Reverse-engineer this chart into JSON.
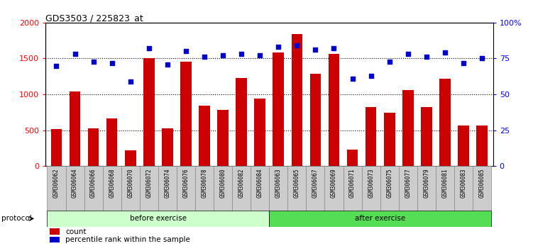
{
  "title": "GDS3503 / 225823_at",
  "categories": [
    "GSM306062",
    "GSM306064",
    "GSM306066",
    "GSM306068",
    "GSM306070",
    "GSM306072",
    "GSM306074",
    "GSM306076",
    "GSM306078",
    "GSM306080",
    "GSM306082",
    "GSM306084",
    "GSM306063",
    "GSM306065",
    "GSM306067",
    "GSM306069",
    "GSM306071",
    "GSM306073",
    "GSM306075",
    "GSM306077",
    "GSM306079",
    "GSM306081",
    "GSM306083",
    "GSM306085"
  ],
  "counts": [
    520,
    1040,
    530,
    670,
    220,
    1500,
    530,
    1460,
    840,
    780,
    1230,
    940,
    1580,
    1840,
    1290,
    1560,
    230,
    820,
    740,
    1060,
    820,
    1220,
    570,
    570
  ],
  "percentiles": [
    70,
    78,
    73,
    72,
    59,
    82,
    71,
    80,
    76,
    77,
    78,
    77,
    83,
    84,
    81,
    82,
    61,
    63,
    73,
    78,
    76,
    79,
    72,
    75
  ],
  "before_count": 12,
  "after_count": 12,
  "bar_color": "#cc0000",
  "dot_color": "#0000cc",
  "ylim_left": [
    0,
    2000
  ],
  "ylim_right": [
    0,
    100
  ],
  "yticks_left": [
    0,
    500,
    1000,
    1500,
    2000
  ],
  "yticks_right": [
    0,
    25,
    50,
    75,
    100
  ],
  "before_label": "before exercise",
  "after_label": "after exercise",
  "protocol_label": "protocol",
  "count_label": "count",
  "percentile_label": "percentile rank within the sample",
  "before_color": "#ccffcc",
  "after_color": "#55dd55",
  "tick_bg": "#cccccc",
  "tick_border": "#888888"
}
